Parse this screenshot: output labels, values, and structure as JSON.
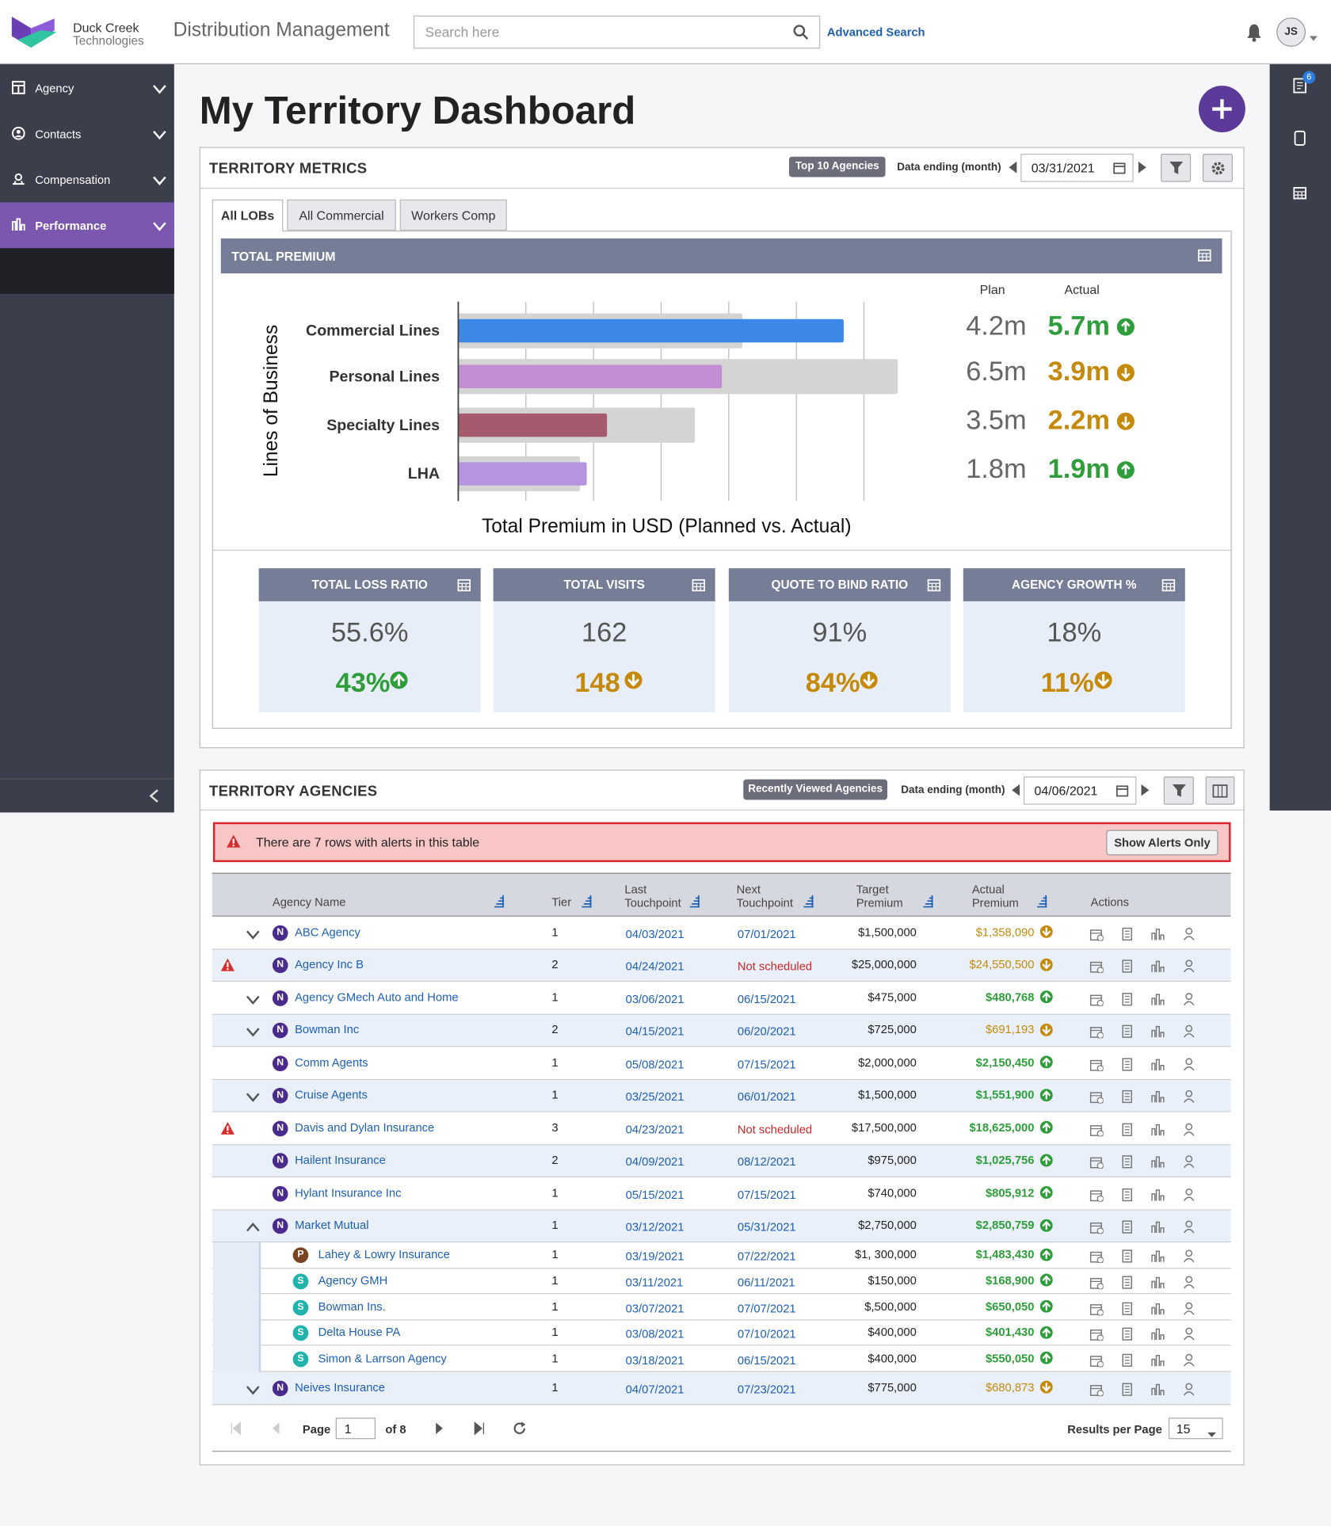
{
  "header": {
    "logo_line1": "Duck Creek",
    "logo_line2": "Technologies",
    "app_title": "Distribution Management",
    "search_placeholder": "Search here",
    "advanced_search": "Advanced Search",
    "avatar": "JS"
  },
  "sidebar": {
    "items": [
      "Agency",
      "Contacts",
      "Compensation",
      "Performance"
    ],
    "active": 3
  },
  "right_rail": {
    "badge": "6"
  },
  "page_title": "My Territory Dashboard",
  "metrics": {
    "title": "TERRITORY METRICS",
    "chip": "Top 10 Agencies",
    "date_label": "Data ending (month)",
    "date": "03/31/2021",
    "tabs": [
      "All LOBs",
      "All Commercial",
      "Workers Comp"
    ],
    "active_tab": 0,
    "cards": [
      {
        "title": "TOTAL LOSS RATIO",
        "plan": "55.6%",
        "actual": "43%",
        "trend": "up"
      },
      {
        "title": "TOTAL VISITS",
        "plan": "162",
        "actual": "148",
        "trend": "down"
      },
      {
        "title": "QUOTE TO BIND RATIO",
        "plan": "91%",
        "actual": "84%",
        "trend": "down"
      },
      {
        "title": "AGENCY GROWTH %",
        "plan": "18%",
        "actual": "11%",
        "trend": "down"
      }
    ]
  },
  "chart_data": {
    "type": "bar",
    "orientation": "horizontal",
    "title": "TOTAL PREMIUM",
    "ylabel": "Lines of Business",
    "xlabel": "Total Premium in USD (Planned vs. Actual)",
    "categories": [
      "Commercial Lines",
      "Personal Lines",
      "Specialty Lines",
      "LHA"
    ],
    "series": [
      {
        "name": "Plan",
        "color": "#d4d4d4",
        "values": [
          4.2,
          6.5,
          3.5,
          1.8
        ],
        "value_labels": [
          "4.2m",
          "6.5m",
          "3.5m",
          "1.8m"
        ]
      },
      {
        "name": "Actual",
        "colors": [
          "#3d87e6",
          "#c38dd2",
          "#a55a6d",
          "#b595df"
        ],
        "values": [
          5.7,
          3.9,
          2.2,
          1.9
        ],
        "value_labels": [
          "5.7m",
          "3.9m",
          "2.2m",
          "1.9m"
        ]
      }
    ],
    "xlim": [
      0,
      6.6
    ],
    "xticks": [
      0,
      1,
      2,
      3,
      4,
      5,
      6
    ],
    "grid": true
  },
  "agencies": {
    "title": "TERRITORY AGENCIES",
    "chip": "Recently Viewed Agencies",
    "date_label": "Data ending (month)",
    "date": "04/06/2021",
    "alert": "There are 7 rows with alerts in this table",
    "alert_button": "Show Alerts Only",
    "columns": [
      "Agency Name",
      "Tier",
      "Last Touchpoint",
      "Next Touchpoint",
      "Target Premium",
      "Actual Premium",
      "Actions"
    ],
    "rows": [
      {
        "expand": "down",
        "badge": "N",
        "name": "ABC Agency",
        "tier": "1",
        "last": "04/03/2021",
        "next": "07/01/2021",
        "target": "$1,500,000",
        "actual": "$1,358,090",
        "trend": "down"
      },
      {
        "alert": true,
        "badge": "N",
        "name": "Agency Inc B",
        "tier": "2",
        "last": "04/24/2021",
        "next": "Not scheduled",
        "target": "$25,000,000",
        "actual": "$24,550,500",
        "trend": "down"
      },
      {
        "expand": "down",
        "badge": "N",
        "name": "Agency GMech Auto and Home",
        "tier": "1",
        "last": "03/06/2021",
        "next": "06/15/2021",
        "target": "$475,000",
        "actual": "$480,768",
        "trend": "up"
      },
      {
        "expand": "down",
        "badge": "N",
        "name": "Bowman Inc",
        "tier": "2",
        "last": "04/15/2021",
        "next": "06/20/2021",
        "target": "$725,000",
        "actual": "$691,193",
        "trend": "down"
      },
      {
        "badge": "N",
        "name": "Comm Agents",
        "tier": "1",
        "last": "05/08/2021",
        "next": "07/15/2021",
        "target": "$2,000,000",
        "actual": "$2,150,450",
        "trend": "up"
      },
      {
        "expand": "down",
        "badge": "N",
        "name": "Cruise Agents",
        "tier": "1",
        "last": "03/25/2021",
        "next": "06/01/2021",
        "target": "$1,500,000",
        "actual": "$1,551,900",
        "trend": "up"
      },
      {
        "alert": true,
        "badge": "N",
        "name": "Davis and Dylan Insurance",
        "tier": "3",
        "last": "04/23/2021",
        "next": "Not scheduled",
        "target": "$17,500,000",
        "actual": "$18,625,000",
        "trend": "up"
      },
      {
        "badge": "N",
        "name": "Hailent Insurance",
        "tier": "2",
        "last": "04/09/2021",
        "next": "08/12/2021",
        "target": "$975,000",
        "actual": "$1,025,756",
        "trend": "up"
      },
      {
        "badge": "N",
        "name": "Hylant Insurance Inc",
        "tier": "1",
        "last": "05/15/2021",
        "next": "07/15/2021",
        "target": "$740,000",
        "actual": "$805,912",
        "trend": "up"
      },
      {
        "expand": "up",
        "badge": "N",
        "name": "Market Mutual",
        "tier": "1",
        "last": "03/12/2021",
        "next": "05/31/2021",
        "target": "$2,750,000",
        "actual": "$2,850,759",
        "trend": "up"
      },
      {
        "child": true,
        "badge": "P",
        "name": "Lahey & Lowry Insurance",
        "tier": "1",
        "last": "03/19/2021",
        "next": "07/22/2021",
        "target": "$1, 300,000",
        "actual": "$1,483,430",
        "trend": "up"
      },
      {
        "child": true,
        "badge": "S",
        "name": "Agency GMH",
        "tier": "1",
        "last": "03/11/2021",
        "next": "06/11/2021",
        "target": "$150,000",
        "actual": "$168,900",
        "trend": "up"
      },
      {
        "child": true,
        "badge": "S",
        "name": "Bowman Ins.",
        "tier": "1",
        "last": "03/07/2021",
        "next": "07/07/2021",
        "target": "$,500,000",
        "actual": "$650,050",
        "trend": "up"
      },
      {
        "child": true,
        "badge": "S",
        "name": "Delta House PA",
        "tier": "1",
        "last": "03/08/2021",
        "next": "07/10/2021",
        "target": "$400,000",
        "actual": "$401,430",
        "trend": "up"
      },
      {
        "child": true,
        "badge": "S",
        "name": "Simon & Larrson Agency",
        "tier": "1",
        "last": "03/18/2021",
        "next": "06/15/2021",
        "target": "$400,000",
        "actual": "$550,050",
        "trend": "up"
      },
      {
        "expand": "down",
        "badge": "N",
        "name": "Neives Insurance",
        "tier": "1",
        "last": "04/07/2021",
        "next": "07/23/2021",
        "target": "$775,000",
        "actual": "$680,873",
        "trend": "down"
      }
    ],
    "pagination": {
      "page_label": "Page",
      "page": "1",
      "of": "of 8",
      "results_label": "Results per Page",
      "per_page": "15"
    }
  }
}
